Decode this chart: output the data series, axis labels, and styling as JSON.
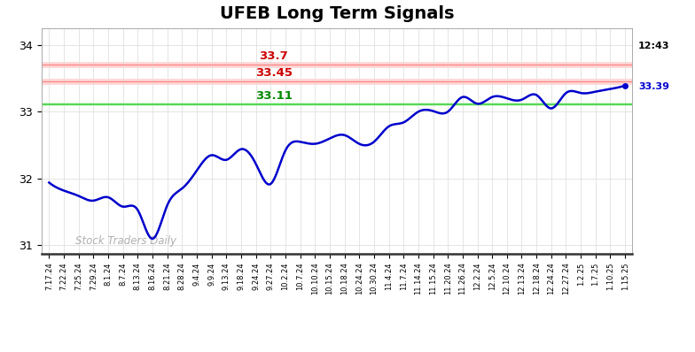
{
  "title": "UFEB Long Term Signals",
  "title_fontsize": 14,
  "title_fontweight": "bold",
  "background_color": "#ffffff",
  "line_color": "#0000cc",
  "line_width": 1.8,
  "ylim": [
    30.88,
    34.25
  ],
  "yticks": [
    31,
    32,
    33,
    34
  ],
  "resistance1": 33.7,
  "resistance1_color": "#cc0000",
  "resistance1_label": "33.7",
  "resistance2": 33.45,
  "resistance2_color": "#cc0000",
  "resistance2_label": "33.45",
  "support": 33.11,
  "support_color": "#008800",
  "support_label": "33.11",
  "last_price": 33.39,
  "last_price_label": "33.39",
  "last_time_label": "12:43",
  "watermark": "Stock Traders Daily",
  "watermark_color": "#b0b0b0",
  "grid_color": "#e0e0e0",
  "x_labels": [
    "7.17.24",
    "7.22.24",
    "7.25.24",
    "7.29.24",
    "8.1.24",
    "8.7.24",
    "8.13.24",
    "8.16.24",
    "8.21.24",
    "8.28.24",
    "9.4.24",
    "9.9.24",
    "9.13.24",
    "9.18.24",
    "9.24.24",
    "9.27.24",
    "10.2.24",
    "10.7.24",
    "10.10.24",
    "10.15.24",
    "10.18.24",
    "10.24.24",
    "10.30.24",
    "11.4.24",
    "11.7.24",
    "11.14.24",
    "11.15.24",
    "11.20.24",
    "11.26.24",
    "12.2.24",
    "12.5.24",
    "12.10.24",
    "12.13.24",
    "12.18.24",
    "12.24.24",
    "12.27.24",
    "1.2.25",
    "1.7.25",
    "1.10.25",
    "1.15.25"
  ],
  "y_values": [
    31.94,
    31.82,
    31.74,
    31.67,
    31.72,
    31.58,
    31.53,
    31.1,
    31.6,
    31.85,
    32.12,
    32.35,
    32.28,
    32.44,
    32.22,
    31.92,
    32.42,
    32.55,
    32.52,
    32.6,
    32.65,
    32.52,
    32.55,
    32.78,
    32.84,
    33.0,
    33.01,
    33.0,
    33.22,
    33.12,
    33.22,
    33.2,
    33.18,
    33.25,
    33.05,
    33.28,
    33.28,
    33.3,
    33.34,
    33.39
  ]
}
